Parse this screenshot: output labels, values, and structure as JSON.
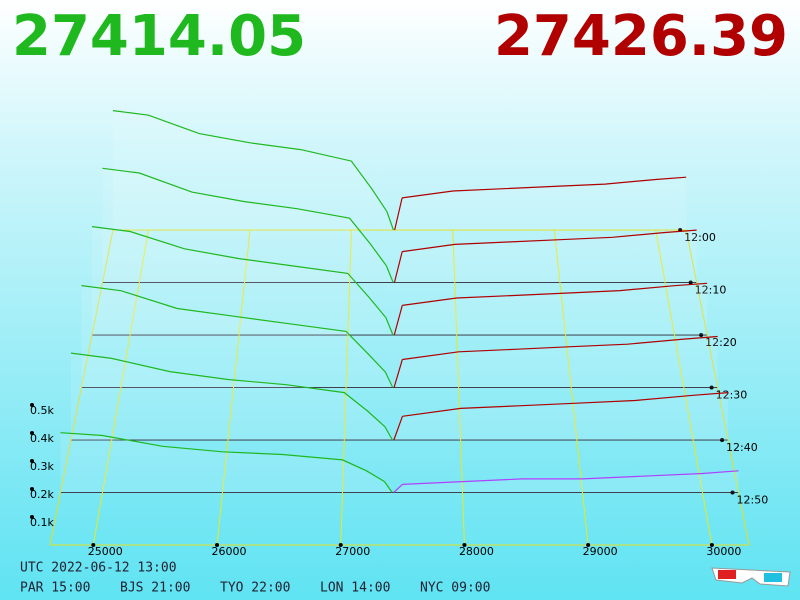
{
  "chart_data": {
    "type": "depth3d",
    "best_bid": 27414.05,
    "best_ask": 27426.39,
    "bid_color": "#1fb81f",
    "ask_color": "#b00000",
    "front_ask_color": "#b040ff",
    "bid_prices": [
      24650,
      25000,
      25500,
      26000,
      26500,
      27000,
      27200,
      27350
    ],
    "ask_prices": [
      27500,
      28000,
      28500,
      29000,
      29500,
      30000,
      30300
    ],
    "xticks": [
      25000,
      26000,
      27000,
      28000,
      29000,
      30000
    ],
    "depth_ticks": [
      {
        "value": 0.1,
        "label": "0.1k"
      },
      {
        "value": 0.2,
        "label": "0.2k"
      },
      {
        "value": 0.3,
        "label": "0.3k"
      },
      {
        "value": 0.4,
        "label": "0.4k"
      },
      {
        "value": 0.5,
        "label": "0.5k"
      }
    ],
    "times": [
      "12:00",
      "12:10",
      "12:20",
      "12:30",
      "12:40",
      "12:50"
    ],
    "snapshots": [
      {
        "bids": [
          0.52,
          0.5,
          0.42,
          0.38,
          0.35,
          0.3,
          0.18,
          0.08
        ],
        "asks": [
          0.14,
          0.17,
          0.18,
          0.19,
          0.2,
          0.22,
          0.23
        ]
      },
      {
        "bids": [
          0.48,
          0.46,
          0.38,
          0.34,
          0.31,
          0.27,
          0.16,
          0.07
        ],
        "asks": [
          0.13,
          0.16,
          0.17,
          0.18,
          0.19,
          0.21,
          0.22
        ]
      },
      {
        "bids": [
          0.44,
          0.42,
          0.35,
          0.31,
          0.28,
          0.25,
          0.15,
          0.07
        ],
        "asks": [
          0.12,
          0.15,
          0.16,
          0.17,
          0.18,
          0.2,
          0.21
        ]
      },
      {
        "bids": [
          0.4,
          0.38,
          0.31,
          0.28,
          0.25,
          0.22,
          0.13,
          0.06
        ],
        "asks": [
          0.11,
          0.14,
          0.15,
          0.16,
          0.17,
          0.19,
          0.2
        ]
      },
      {
        "bids": [
          0.33,
          0.31,
          0.26,
          0.23,
          0.21,
          0.18,
          0.11,
          0.05
        ],
        "asks": [
          0.09,
          0.12,
          0.13,
          0.14,
          0.15,
          0.17,
          0.18
        ]
      },
      {
        "bids": [
          0.22,
          0.21,
          0.17,
          0.15,
          0.14,
          0.12,
          0.08,
          0.04
        ],
        "asks": [
          0.03,
          0.04,
          0.05,
          0.05,
          0.06,
          0.07,
          0.08
        ]
      }
    ]
  },
  "footer": {
    "utc": "UTC 2022-06-12 13:00",
    "zones": [
      "PAR 15:00",
      "BJS 21:00",
      "TYO 22:00",
      "LON 14:00",
      "NYC 09:00"
    ]
  }
}
